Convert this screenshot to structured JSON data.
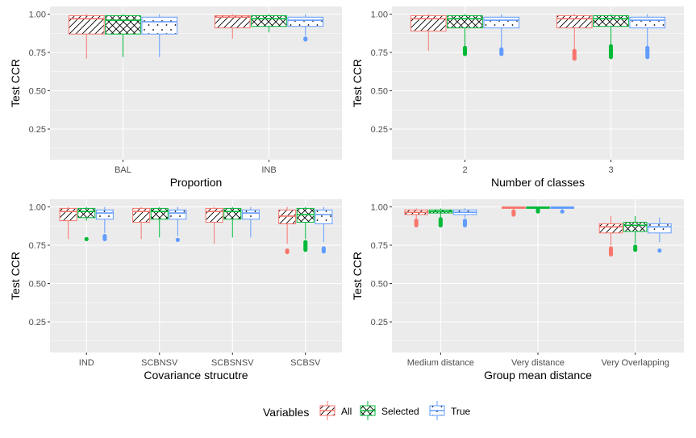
{
  "colors": {
    "panel_bg": "#EBEBEB",
    "grid": "#FFFFFF",
    "All": "#F8766D",
    "Selected": "#00BA38",
    "True": "#619CFF"
  },
  "legend": {
    "title": "Variables",
    "items": [
      "All",
      "Selected",
      "True"
    ],
    "patterns": [
      "stripe",
      "crosshatch",
      "dots"
    ],
    "placement": "bottom"
  },
  "chart_data": [
    {
      "type": "box",
      "xlabel": "Proportion",
      "ylabel": "Test CCR",
      "ylim": [
        0.05,
        1.05
      ],
      "yticks": [
        "0.25",
        "0.50",
        "0.75",
        "1.00"
      ],
      "categories": [
        "BAL",
        "INB"
      ],
      "series": [
        {
          "name": "All",
          "boxes": [
            {
              "min": 0.71,
              "q1": 0.87,
              "median": 0.97,
              "q3": 0.99,
              "max": 1.0,
              "outliers": []
            },
            {
              "min": 0.84,
              "q1": 0.91,
              "median": 0.98,
              "q3": 0.99,
              "max": 1.0,
              "outliers": []
            }
          ]
        },
        {
          "name": "Selected",
          "boxes": [
            {
              "min": 0.72,
              "q1": 0.87,
              "median": 0.96,
              "q3": 0.99,
              "max": 1.0,
              "outliers": []
            },
            {
              "min": 0.88,
              "q1": 0.92,
              "median": 0.97,
              "q3": 0.99,
              "max": 1.0,
              "outliers": []
            }
          ]
        },
        {
          "name": "True",
          "boxes": [
            {
              "min": 0.72,
              "q1": 0.87,
              "median": 0.95,
              "q3": 0.98,
              "max": 1.0,
              "outliers": []
            },
            {
              "min": 0.86,
              "q1": 0.92,
              "median": 0.96,
              "q3": 0.98,
              "max": 1.0,
              "outliers": [
                0.835,
                0.84
              ]
            }
          ]
        }
      ]
    },
    {
      "type": "box",
      "xlabel": "Number of classes",
      "ylabel": "Test CCR",
      "ylim": [
        0.05,
        1.05
      ],
      "yticks": [
        "0.25",
        "0.50",
        "0.75",
        "1.00"
      ],
      "categories": [
        "2",
        "3"
      ],
      "series": [
        {
          "name": "All",
          "boxes": [
            {
              "min": 0.76,
              "q1": 0.89,
              "median": 0.97,
              "q3": 0.99,
              "max": 1.0,
              "outliers": []
            },
            {
              "min": 0.77,
              "q1": 0.91,
              "median": 0.97,
              "q3": 0.99,
              "max": 1.0,
              "outliers": [
                0.71,
                0.72,
                0.73,
                0.74,
                0.75,
                0.76
              ]
            }
          ]
        },
        {
          "name": "Selected",
          "boxes": [
            {
              "min": 0.79,
              "q1": 0.91,
              "median": 0.97,
              "q3": 0.99,
              "max": 1.0,
              "outliers": [
                0.74,
                0.75,
                0.76,
                0.77,
                0.78
              ]
            },
            {
              "min": 0.8,
              "q1": 0.92,
              "median": 0.97,
              "q3": 0.99,
              "max": 1.0,
              "outliers": [
                0.72,
                0.73,
                0.74,
                0.75,
                0.76,
                0.77,
                0.78,
                0.79
              ]
            }
          ]
        },
        {
          "name": "True",
          "boxes": [
            {
              "min": 0.78,
              "q1": 0.91,
              "median": 0.96,
              "q3": 0.98,
              "max": 1.0,
              "outliers": [
                0.74,
                0.75,
                0.76,
                0.77
              ]
            },
            {
              "min": 0.79,
              "q1": 0.91,
              "median": 0.96,
              "q3": 0.98,
              "max": 1.0,
              "outliers": [
                0.72,
                0.73,
                0.74,
                0.75,
                0.76,
                0.77,
                0.78
              ]
            }
          ]
        }
      ]
    },
    {
      "type": "box",
      "xlabel": "Covariance strucutre",
      "ylabel": "Test CCR",
      "ylim": [
        0.05,
        1.05
      ],
      "yticks": [
        "0.25",
        "0.50",
        "0.75",
        "1.00"
      ],
      "categories": [
        "IND",
        "SCBNSV",
        "SCBSNSV",
        "SCBSV"
      ],
      "series": [
        {
          "name": "All",
          "boxes": [
            {
              "min": 0.79,
              "q1": 0.91,
              "median": 0.97,
              "q3": 0.99,
              "max": 1.0,
              "outliers": []
            },
            {
              "min": 0.79,
              "q1": 0.9,
              "median": 0.97,
              "q3": 0.99,
              "max": 1.0,
              "outliers": []
            },
            {
              "min": 0.76,
              "q1": 0.9,
              "median": 0.97,
              "q3": 0.99,
              "max": 1.0,
              "outliers": []
            },
            {
              "min": 0.76,
              "q1": 0.89,
              "median": 0.94,
              "q3": 0.98,
              "max": 1.0,
              "outliers": [
                0.705,
                0.715
              ]
            }
          ]
        },
        {
          "name": "Selected",
          "boxes": [
            {
              "min": 0.91,
              "q1": 0.93,
              "median": 0.97,
              "q3": 0.99,
              "max": 1.0,
              "outliers": [
                0.79
              ]
            },
            {
              "min": 0.8,
              "q1": 0.92,
              "median": 0.97,
              "q3": 0.99,
              "max": 1.0,
              "outliers": []
            },
            {
              "min": 0.8,
              "q1": 0.92,
              "median": 0.97,
              "q3": 0.99,
              "max": 1.0,
              "outliers": []
            },
            {
              "min": 0.79,
              "q1": 0.9,
              "median": 0.95,
              "q3": 0.99,
              "max": 1.0,
              "outliers": [
                0.72,
                0.73,
                0.74,
                0.75,
                0.76,
                0.77
              ]
            }
          ]
        },
        {
          "name": "True",
          "boxes": [
            {
              "min": 0.83,
              "q1": 0.92,
              "median": 0.96,
              "q3": 0.98,
              "max": 1.0,
              "outliers": [
                0.79,
                0.8,
                0.81
              ]
            },
            {
              "min": 0.81,
              "q1": 0.92,
              "median": 0.96,
              "q3": 0.98,
              "max": 1.0,
              "outliers": [
                0.785
              ]
            },
            {
              "min": 0.8,
              "q1": 0.92,
              "median": 0.96,
              "q3": 0.98,
              "max": 1.0,
              "outliers": []
            },
            {
              "min": 0.77,
              "q1": 0.89,
              "median": 0.95,
              "q3": 0.98,
              "max": 1.0,
              "outliers": [
                0.71,
                0.72,
                0.73
              ]
            }
          ]
        }
      ]
    },
    {
      "type": "box",
      "xlabel": "Group mean distance",
      "ylabel": "Test CCR",
      "ylim": [
        0.05,
        1.05
      ],
      "yticks": [
        "0.25",
        "0.50",
        "0.75",
        "1.00"
      ],
      "categories": [
        "Medium distance",
        "Very distance",
        "Very Overlapping"
      ],
      "series": [
        {
          "name": "All",
          "boxes": [
            {
              "min": 0.92,
              "q1": 0.95,
              "median": 0.965,
              "q3": 0.98,
              "max": 0.99,
              "outliers": [
                0.88,
                0.89,
                0.9,
                0.91
              ]
            },
            {
              "min": 0.98,
              "q1": 0.99,
              "median": 0.995,
              "q3": 1.0,
              "max": 1.0,
              "outliers": [
                0.95,
                0.96,
                0.97
              ]
            },
            {
              "min": 0.75,
              "q1": 0.83,
              "median": 0.87,
              "q3": 0.89,
              "max": 0.94,
              "outliers": [
                0.69,
                0.7,
                0.71,
                0.72,
                0.73
              ]
            }
          ]
        },
        {
          "name": "Selected",
          "boxes": [
            {
              "min": 0.93,
              "q1": 0.96,
              "median": 0.97,
              "q3": 0.98,
              "max": 0.99,
              "outliers": [
                0.88,
                0.89,
                0.9,
                0.91,
                0.92
              ]
            },
            {
              "min": 0.985,
              "q1": 0.99,
              "median": 0.995,
              "q3": 1.0,
              "max": 1.0,
              "outliers": [
                0.97,
                0.98
              ]
            },
            {
              "min": 0.76,
              "q1": 0.84,
              "median": 0.88,
              "q3": 0.9,
              "max": 0.94,
              "outliers": [
                0.72,
                0.73,
                0.74
              ]
            }
          ]
        },
        {
          "name": "True",
          "boxes": [
            {
              "min": 0.93,
              "q1": 0.95,
              "median": 0.965,
              "q3": 0.98,
              "max": 0.99,
              "outliers": [
                0.88,
                0.89,
                0.9,
                0.91
              ]
            },
            {
              "min": 0.985,
              "q1": 0.99,
              "median": 0.995,
              "q3": 1.0,
              "max": 1.0,
              "outliers": [
                0.97
              ]
            },
            {
              "min": 0.77,
              "q1": 0.83,
              "median": 0.87,
              "q3": 0.89,
              "max": 0.93,
              "outliers": [
                0.715
              ]
            }
          ]
        }
      ]
    }
  ]
}
